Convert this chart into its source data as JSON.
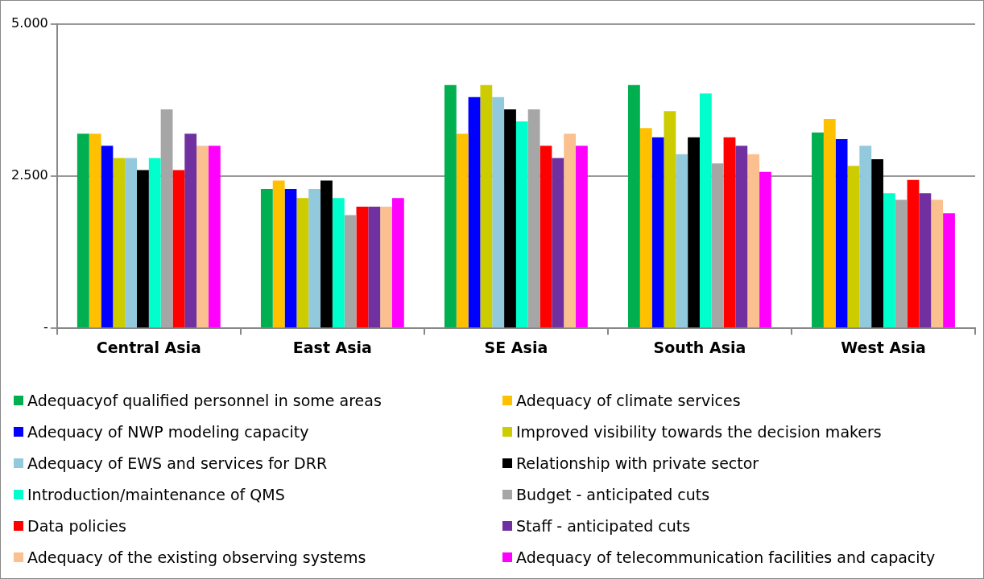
{
  "chart_data": {
    "type": "bar",
    "categories": [
      "Central Asia",
      "East Asia",
      "SE Asia",
      "South Asia",
      "West Asia"
    ],
    "ylim": [
      0,
      5
    ],
    "yticks": [
      {
        "value": 0,
        "label": "-"
      },
      {
        "value": 2.5,
        "label": "2.500"
      },
      {
        "value": 5,
        "label": "5.000"
      }
    ],
    "grid": "y",
    "legend": "bottom",
    "series": [
      {
        "name": "Adequacyof qualified personnel in some areas",
        "color": "#00b050",
        "values": [
          3.2,
          2.29,
          4.0,
          4.0,
          3.22
        ]
      },
      {
        "name": "Adequacy of climate services",
        "color": "#ffc000",
        "values": [
          3.2,
          2.43,
          3.2,
          3.29,
          3.44
        ]
      },
      {
        "name": "Adequacy of NWP modeling capacity",
        "color": "#0000ff",
        "values": [
          3.0,
          2.29,
          3.8,
          3.14,
          3.11
        ]
      },
      {
        "name": "Improved visibility towards the decision makers",
        "color": "#cccc00",
        "values": [
          2.8,
          2.14,
          4.0,
          3.57,
          2.67
        ]
      },
      {
        "name": "Adequacy of EWS and services for DRR",
        "color": "#92c9dc",
        "values": [
          2.8,
          2.29,
          3.8,
          2.86,
          3.0
        ]
      },
      {
        "name": "Relationship with private sector",
        "color": "#000000",
        "values": [
          2.6,
          2.43,
          3.6,
          3.14,
          2.78
        ]
      },
      {
        "name": "Introduction/maintenance of QMS",
        "color": "#00ffcc",
        "values": [
          2.8,
          2.14,
          3.4,
          3.86,
          2.22
        ]
      },
      {
        "name": "Budget - anticipated cuts",
        "color": "#a6a6a6",
        "values": [
          3.6,
          1.86,
          3.6,
          2.71,
          2.11
        ]
      },
      {
        "name": "Data policies",
        "color": "#ff0000",
        "values": [
          2.6,
          2.0,
          3.0,
          3.14,
          2.44
        ]
      },
      {
        "name": "Staff - anticipated cuts",
        "color": "#7030a0",
        "values": [
          3.2,
          2.0,
          2.8,
          3.0,
          2.22
        ]
      },
      {
        "name": "Adequacy of the existing observing systems",
        "color": "#fac090",
        "values": [
          3.0,
          2.0,
          3.2,
          2.86,
          2.11
        ]
      },
      {
        "name": "Adequacy of telecommunication facilities and capacity",
        "color": "#ff00ff",
        "values": [
          3.0,
          2.14,
          3.0,
          2.57,
          1.89
        ]
      }
    ]
  }
}
